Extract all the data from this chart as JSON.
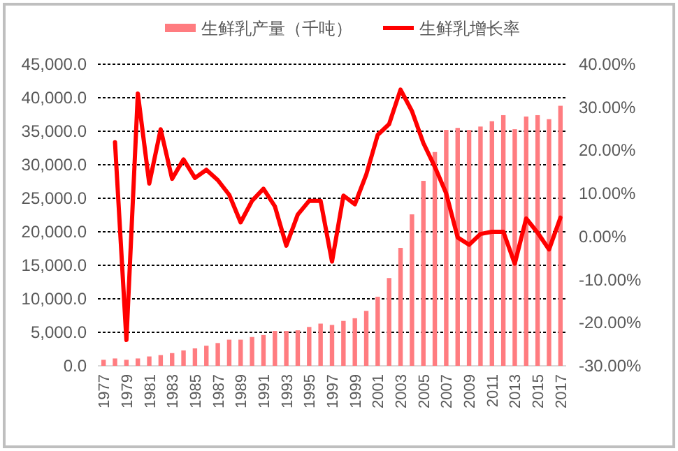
{
  "chart_data": {
    "type": "bar",
    "categories": [
      "1977",
      null,
      "1979",
      null,
      "1981",
      null,
      "1983",
      null,
      "1985",
      null,
      "1987",
      null,
      "1989",
      null,
      "1991",
      null,
      "1993",
      null,
      "1995",
      null,
      "1997",
      null,
      "1999",
      null,
      "2001",
      null,
      "2003",
      null,
      "2005",
      null,
      "2007",
      null,
      "2009",
      null,
      "2011",
      null,
      "2013",
      null,
      "2015",
      null,
      "2017"
    ],
    "series": [
      {
        "name": "生鲜乳产量（千吨）",
        "color": "#ff7c80",
        "values": [
          900,
          1100,
          900,
          1100,
          1400,
          1600,
          1900,
          2300,
          2600,
          3000,
          3400,
          3900,
          3900,
          4300,
          4600,
          5200,
          5200,
          5300,
          5800,
          6300,
          6100,
          6700,
          7100,
          8200,
          10300,
          13100,
          17600,
          22600,
          27600,
          31900,
          35200,
          35500,
          35200,
          35700,
          36500,
          37400,
          35300,
          37200,
          37400,
          36800,
          38800
        ]
      },
      {
        "name": "生鲜乳增长率",
        "type": "line",
        "axis": "y2",
        "color": "#ff0000",
        "values": [
          null,
          21.9,
          -24.0,
          33.2,
          12.3,
          24.9,
          13.4,
          17.9,
          13.6,
          15.5,
          13.1,
          9.7,
          3.3,
          8.3,
          11.1,
          7.0,
          -2.1,
          5.1,
          8.3,
          8.3,
          -5.8,
          9.5,
          7.5,
          14.4,
          23.6,
          26.1,
          34.1,
          29.1,
          21.7,
          16.2,
          10.0,
          -0.2,
          -1.9,
          0.6,
          1.1,
          1.1,
          -6.3,
          4.2,
          0.9,
          -3.0,
          4.4
        ]
      }
    ],
    "ylim": [
      0,
      45000
    ],
    "yticks": [
      {
        "value": 0,
        "label": "0.0"
      },
      {
        "value": 5000,
        "label": "5,000.0"
      },
      {
        "value": 10000,
        "label": "10,000.0"
      },
      {
        "value": 15000,
        "label": "15,000.0"
      },
      {
        "value": 20000,
        "label": "20,000.0"
      },
      {
        "value": 25000,
        "label": "25,000.0"
      },
      {
        "value": 30000,
        "label": "30,000.0"
      },
      {
        "value": 35000,
        "label": "35,000.0"
      },
      {
        "value": 40000,
        "label": "40,000.0"
      },
      {
        "value": 45000,
        "label": "45,000.0"
      }
    ],
    "y2lim": [
      -30,
      40
    ],
    "y2ticks": [
      {
        "value": -30,
        "label": "-30.00%"
      },
      {
        "value": -20,
        "label": "-20.00%"
      },
      {
        "value": -10,
        "label": "-10.00%"
      },
      {
        "value": 0,
        "label": "0.00%"
      },
      {
        "value": 10,
        "label": "10.00%"
      },
      {
        "value": 20,
        "label": "20.00%"
      },
      {
        "value": 30,
        "label": "30.00%"
      },
      {
        "value": 40,
        "label": "40.00%"
      }
    ],
    "grid": "y",
    "legend": "top"
  }
}
